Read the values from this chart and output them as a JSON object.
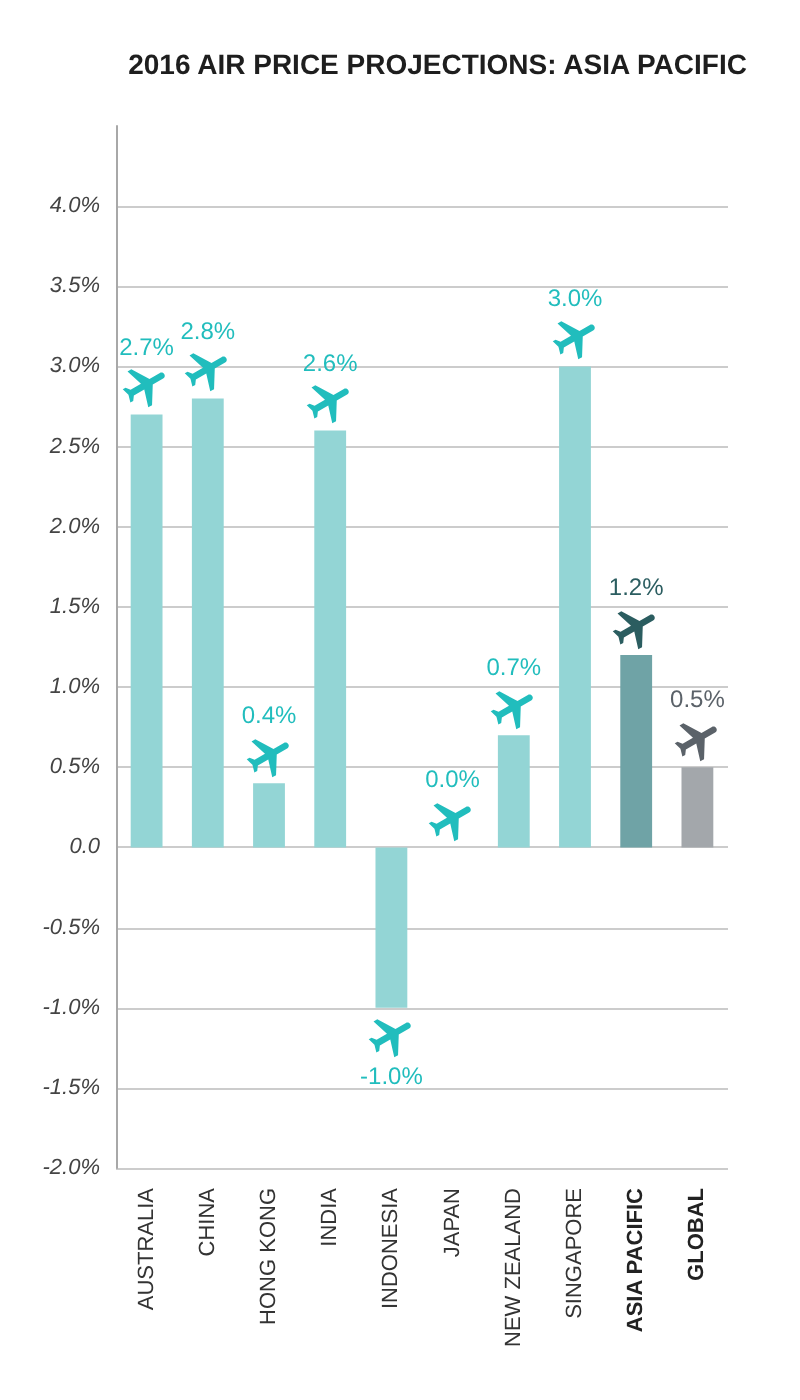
{
  "chart_data": {
    "type": "bar",
    "title": "2016 AIR PRICE PROJECTIONS: ASIA PACIFIC",
    "categories": [
      "AUSTRALIA",
      "CHINA",
      "HONG KONG",
      "INDIA",
      "INDONESIA",
      "JAPAN",
      "NEW ZEALAND",
      "SINGAPORE",
      "ASIA PACIFIC",
      "GLOBAL"
    ],
    "values": [
      2.7,
      2.8,
      0.4,
      2.6,
      -1.0,
      0.0,
      0.7,
      3.0,
      1.2,
      0.5
    ],
    "colors": [
      "#93d5d5",
      "#93d5d5",
      "#93d5d5",
      "#93d5d5",
      "#93d5d5",
      "#93d5d5",
      "#93d5d5",
      "#93d5d5",
      "#6fa3a6",
      "#a3a7ab"
    ],
    "value_labels": [
      "2.7%",
      "2.8%",
      "0.4%",
      "2.6%",
      "-1.0%",
      "0.0%",
      "0.7%",
      "3.0%",
      "1.2%",
      "0.5%"
    ],
    "ylim": [
      -2,
      4.5
    ],
    "yticks": [
      {
        "value": -2,
        "label": "-2.0%"
      },
      {
        "value": -1.5,
        "label": "-1.5%"
      },
      {
        "value": -1,
        "label": "-1.0%"
      },
      {
        "value": -0.5,
        "label": "-0.5%"
      },
      {
        "value": 0,
        "label": "0.0"
      },
      {
        "value": 0.5,
        "label": "0.5%"
      },
      {
        "value": 1,
        "label": "1.0%"
      },
      {
        "value": 1.5,
        "label": "1.5%"
      },
      {
        "value": 2,
        "label": "2.0%"
      },
      {
        "value": 2.5,
        "label": "2.5%"
      },
      {
        "value": 3,
        "label": "3.0%"
      },
      {
        "value": 3.5,
        "label": "3.5%"
      },
      {
        "value": 4,
        "label": "4.0%"
      }
    ],
    "grid": "y"
  }
}
